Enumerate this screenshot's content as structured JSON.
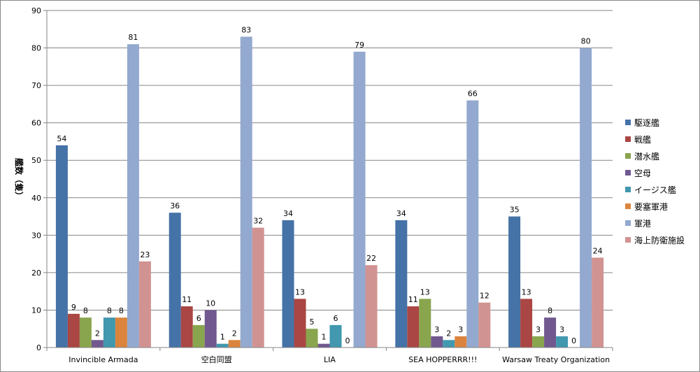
{
  "chart_data": {
    "type": "bar",
    "categories": [
      "Invincible Armada",
      "空白同盟",
      "LIA",
      "SEA HOPPERRR!!!",
      "Warsaw Treaty Organization"
    ],
    "series": [
      {
        "name": "駆逐艦",
        "color": "#4572A7",
        "values": [
          54,
          36,
          34,
          34,
          35
        ]
      },
      {
        "name": "戦艦",
        "color": "#AA4643",
        "values": [
          9,
          11,
          13,
          11,
          13
        ]
      },
      {
        "name": "潜水艦",
        "color": "#89A54E",
        "values": [
          8,
          6,
          5,
          13,
          3
        ]
      },
      {
        "name": "空母",
        "color": "#71588F",
        "values": [
          2,
          10,
          1,
          3,
          8
        ]
      },
      {
        "name": "イージス艦",
        "color": "#4198AF",
        "values": [
          8,
          1,
          6,
          2,
          3
        ]
      },
      {
        "name": "要塞軍港",
        "color": "#DB843D",
        "values": [
          8,
          2,
          0,
          3,
          0
        ]
      },
      {
        "name": "軍港",
        "color": "#93A9CF",
        "values": [
          81,
          83,
          79,
          66,
          80
        ]
      },
      {
        "name": "海上防衛施設",
        "color": "#D19392",
        "values": [
          23,
          32,
          22,
          12,
          24
        ]
      }
    ],
    "ylabel": "艦数（隻）",
    "ylim": [
      0,
      90
    ],
    "yticks": [
      0,
      10,
      20,
      30,
      40,
      50,
      60,
      70,
      80,
      90
    ],
    "grid": true,
    "legend": "right"
  }
}
